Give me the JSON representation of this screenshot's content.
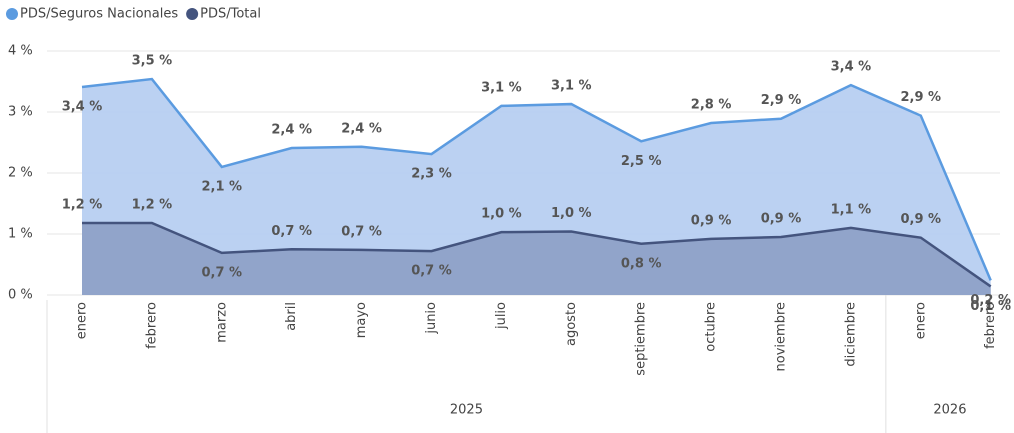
{
  "chart_data": {
    "type": "area",
    "categories": [
      "enero",
      "febrero",
      "marzo",
      "abril",
      "mayo",
      "junio",
      "julio",
      "agosto",
      "septiembre",
      "octubre",
      "noviembre",
      "diciembre",
      "enero",
      "febrero"
    ],
    "years": [
      "2025",
      "2025",
      "2025",
      "2025",
      "2025",
      "2025",
      "2025",
      "2025",
      "2025",
      "2025",
      "2025",
      "2025",
      "2026",
      "2026"
    ],
    "series": [
      {
        "name": "PDS/Seguros Nacionales",
        "color": "#5b9be0",
        "fill": "#b7cff1",
        "values": [
          3.41,
          3.54,
          2.1,
          2.41,
          2.43,
          2.31,
          3.1,
          3.13,
          2.52,
          2.82,
          2.89,
          3.44,
          2.94,
          0.24
        ],
        "value_labels": [
          "3,4 %",
          "3,5 %",
          "2,1 %",
          "2,4 %",
          "2,4 %",
          "2,3 %",
          "3,1 %",
          "3,1 %",
          "2,5 %",
          "2,8 %",
          "2,9 %",
          "3,4 %",
          "2,9 %",
          "0,2 %"
        ]
      },
      {
        "name": "PDS/Total",
        "color": "#44547e",
        "fill": "#8ea1c7",
        "values": [
          1.18,
          1.18,
          0.69,
          0.75,
          0.74,
          0.72,
          1.03,
          1.04,
          0.84,
          0.92,
          0.95,
          1.1,
          0.94,
          0.14
        ],
        "value_labels": [
          "1,2 %",
          "1,2 %",
          "0,7 %",
          "0,7 %",
          "0,7 %",
          "0,7 %",
          "1,0 %",
          "1,0 %",
          "0,8 %",
          "0,9 %",
          "0,9 %",
          "1,1 %",
          "0,9 %",
          "0,1 %"
        ]
      }
    ],
    "ylim": [
      0,
      4
    ],
    "yticks": [
      {
        "value": 0,
        "label": "0 %"
      },
      {
        "value": 1,
        "label": "1 %"
      },
      {
        "value": 2,
        "label": "2 %"
      },
      {
        "value": 3,
        "label": "3 %"
      },
      {
        "value": 4,
        "label": "4 %"
      }
    ],
    "grid": true,
    "legend": "top-left"
  }
}
